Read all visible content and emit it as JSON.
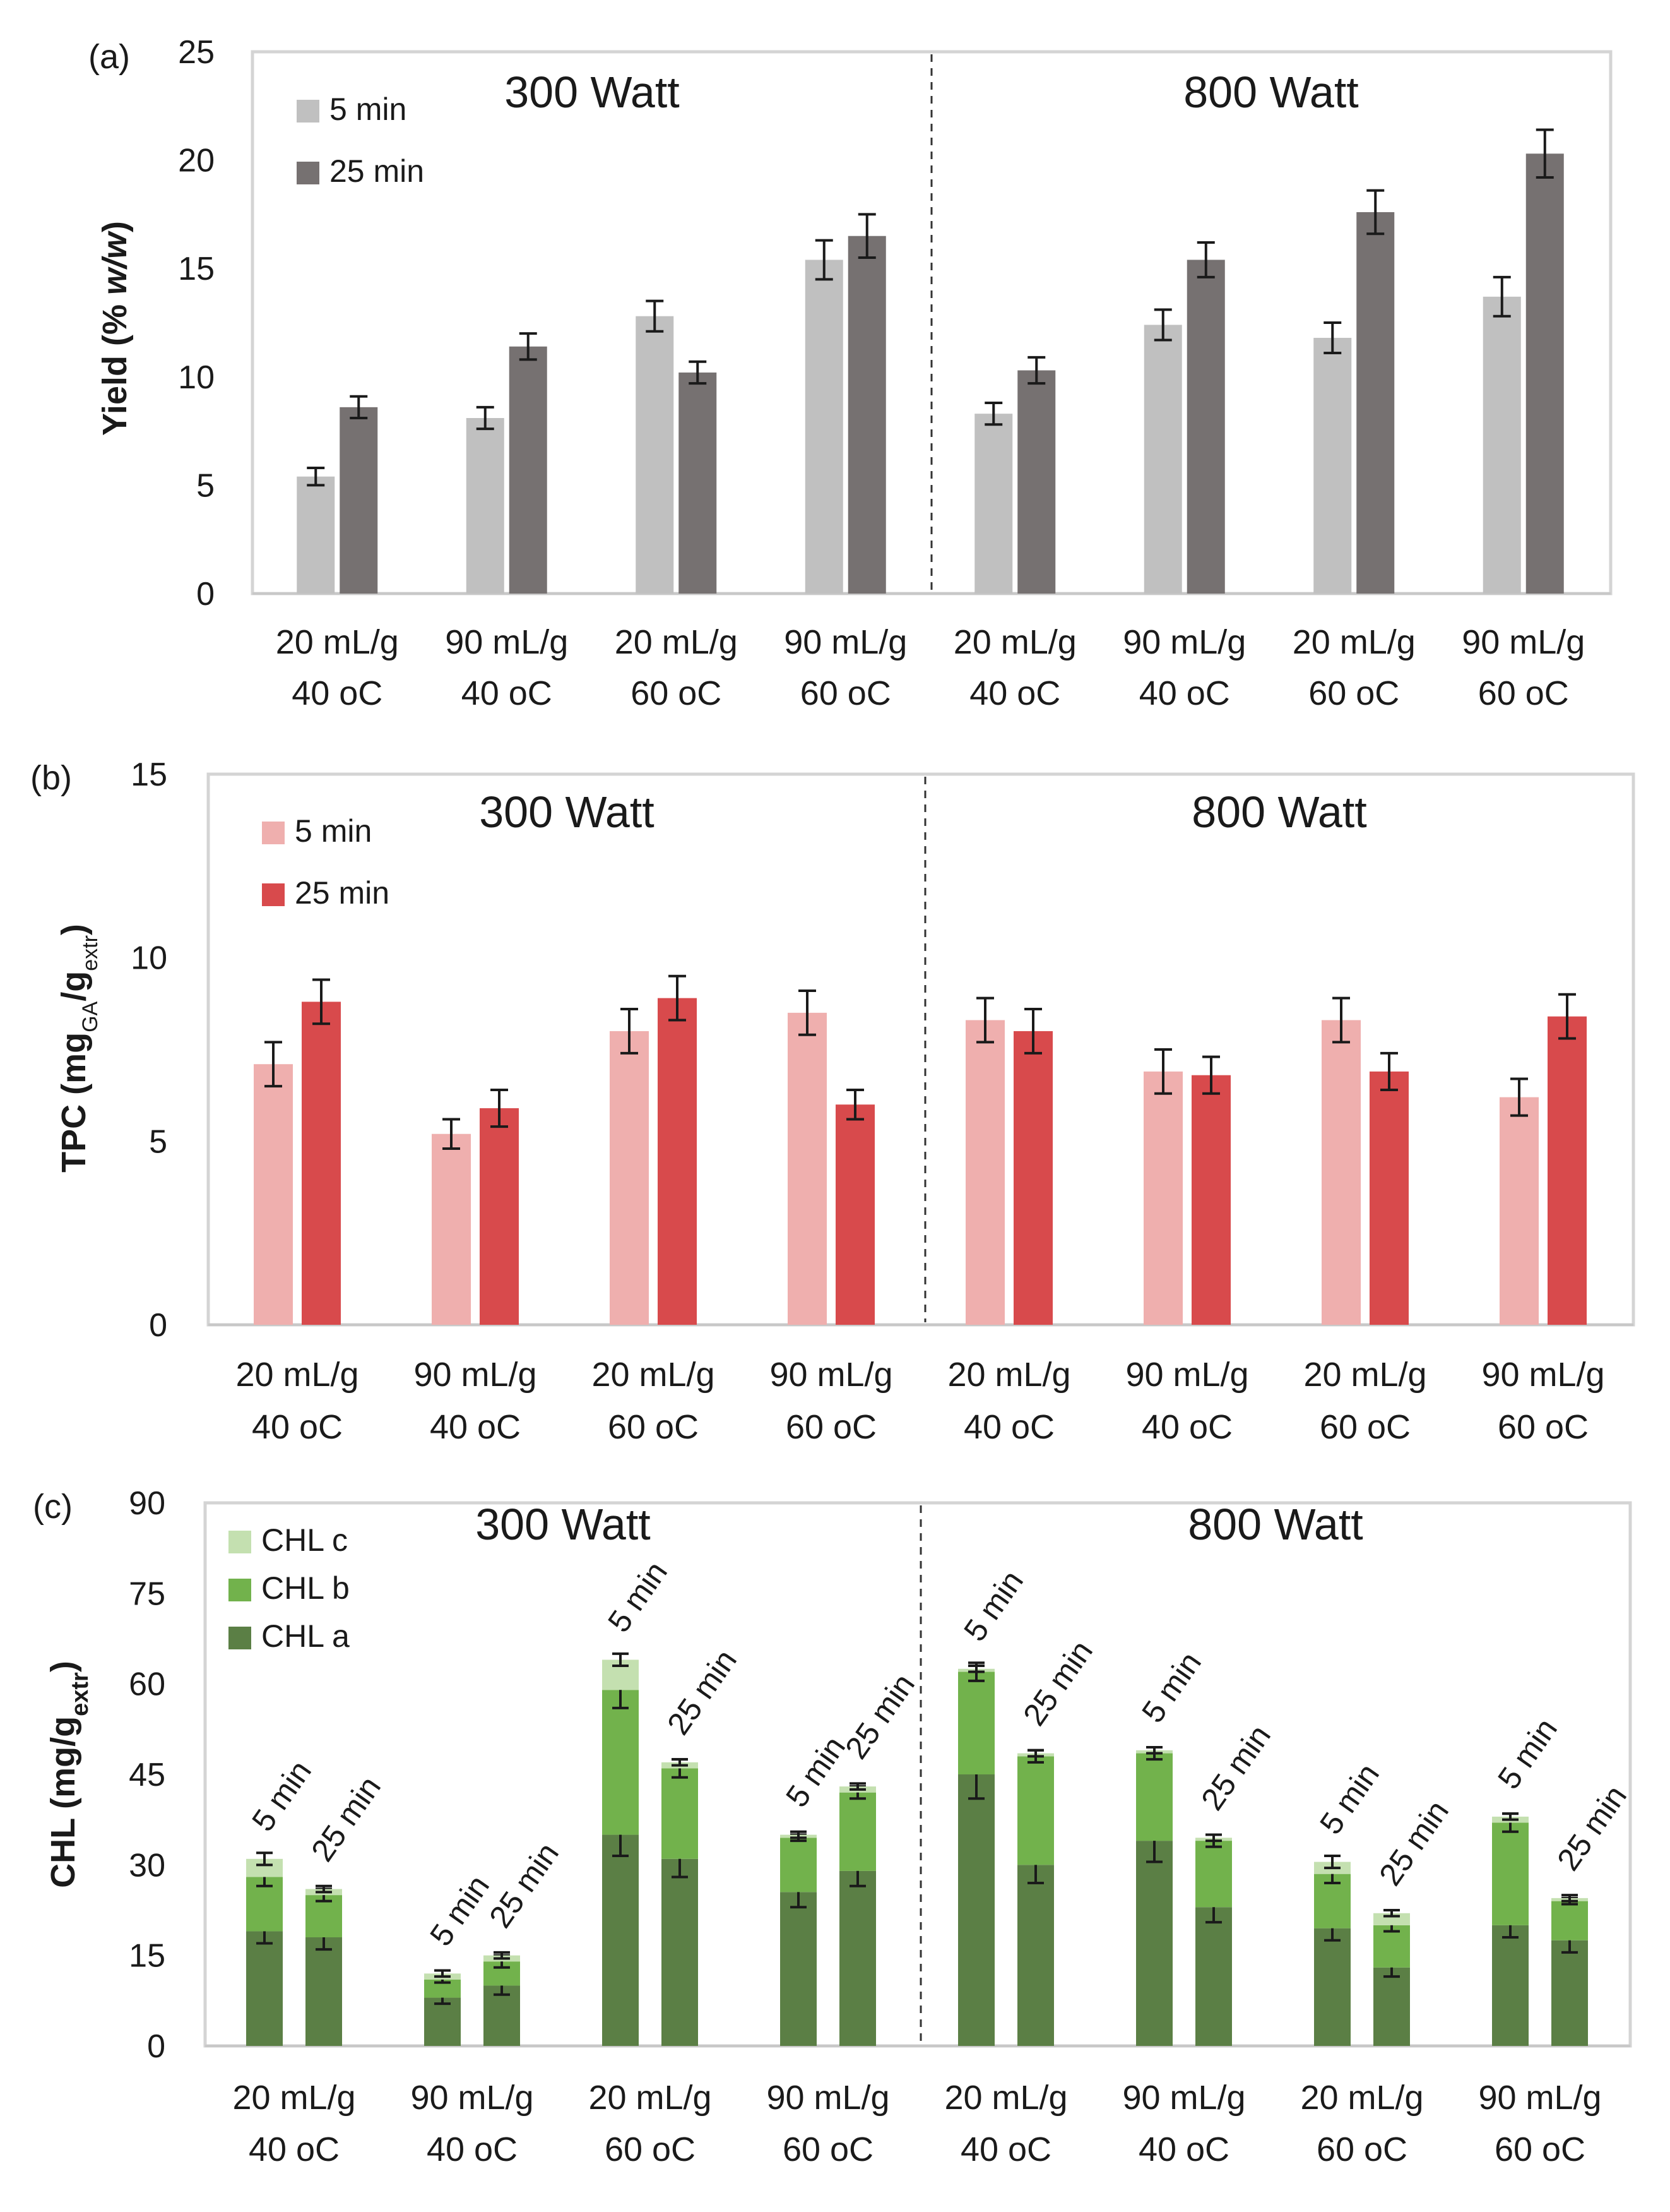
{
  "chart_data": [
    {
      "type": "bar",
      "panel": "(a)",
      "ylabel": "Yield (% w/w)",
      "ylim": [
        0,
        25
      ],
      "yticks": [
        0,
        5,
        10,
        15,
        20,
        25
      ],
      "categories": [
        [
          "20 mL/g",
          "40 oC"
        ],
        [
          "90 mL/g",
          "40 oC"
        ],
        [
          "20 mL/g",
          "60 oC"
        ],
        [
          "90 mL/g",
          "60 oC"
        ],
        [
          "20 mL/g",
          "40 oC"
        ],
        [
          "90 mL/g",
          "40 oC"
        ],
        [
          "20 mL/g",
          "60 oC"
        ],
        [
          "90 mL/g",
          "60 oC"
        ]
      ],
      "groups": [
        "300 Watt",
        "800 Watt"
      ],
      "series": [
        {
          "name": "5 min",
          "color": "#c0c0c0",
          "values": [
            5.4,
            8.1,
            12.8,
            15.4,
            8.3,
            12.4,
            11.8,
            13.7
          ],
          "errors": [
            0.4,
            0.5,
            0.7,
            0.9,
            0.5,
            0.7,
            0.7,
            0.9
          ]
        },
        {
          "name": "25 min",
          "color": "#767171",
          "values": [
            8.6,
            11.4,
            10.2,
            16.5,
            10.3,
            15.4,
            17.6,
            20.3
          ],
          "errors": [
            0.5,
            0.6,
            0.5,
            1.0,
            0.6,
            0.8,
            1.0,
            1.1
          ]
        }
      ]
    },
    {
      "type": "bar",
      "panel": "(b)",
      "ylabel": "TPC (mgGA/gextr)",
      "ylabel_parts": {
        "main": "TPC (mg",
        "sub1": "GA",
        "mid": "/g",
        "sub2": "extr",
        "end": ")"
      },
      "ylim": [
        0,
        15
      ],
      "yticks": [
        0,
        5,
        10,
        15
      ],
      "categories": [
        [
          "20 mL/g",
          "40 oC"
        ],
        [
          "90 mL/g",
          "40 oC"
        ],
        [
          "20 mL/g",
          "60 oC"
        ],
        [
          "90 mL/g",
          "60 oC"
        ],
        [
          "20 mL/g",
          "40 oC"
        ],
        [
          "90 mL/g",
          "40 oC"
        ],
        [
          "20 mL/g",
          "60 oC"
        ],
        [
          "90 mL/g",
          "60 oC"
        ]
      ],
      "groups": [
        "300 Watt",
        "800 Watt"
      ],
      "series": [
        {
          "name": "5 min",
          "color": "#efafae",
          "values": [
            7.1,
            5.2,
            8.0,
            8.5,
            8.3,
            6.9,
            8.3,
            6.2
          ],
          "errors": [
            0.6,
            0.4,
            0.6,
            0.6,
            0.6,
            0.6,
            0.6,
            0.5
          ]
        },
        {
          "name": "25 min",
          "color": "#d84a4c",
          "values": [
            8.8,
            5.9,
            8.9,
            6.0,
            8.0,
            6.8,
            6.9,
            8.4
          ],
          "errors": [
            0.6,
            0.5,
            0.6,
            0.4,
            0.6,
            0.5,
            0.5,
            0.6
          ]
        }
      ]
    },
    {
      "type": "stacked_bar",
      "panel": "(c)",
      "ylabel": "CHL (mg/gextr)",
      "ylabel_parts": {
        "main": "CHL (mg/g",
        "sub": "extr",
        "end": ")"
      },
      "ylim": [
        0,
        90
      ],
      "yticks": [
        0,
        15,
        30,
        45,
        60,
        75,
        90
      ],
      "categories": [
        [
          "20 mL/g",
          "40 oC"
        ],
        [
          "90 mL/g",
          "40 oC"
        ],
        [
          "20 mL/g",
          "60 oC"
        ],
        [
          "90 mL/g",
          "60 oC"
        ],
        [
          "20 mL/g",
          "40 oC"
        ],
        [
          "90 mL/g",
          "40 oC"
        ],
        [
          "20 mL/g",
          "60 oC"
        ],
        [
          "90 mL/g",
          "60 oC"
        ]
      ],
      "groups": [
        "300 Watt",
        "800 Watt"
      ],
      "bar_labels": [
        "5 min",
        "25 min"
      ],
      "components": [
        {
          "name": "CHL a",
          "color": "#5b7f45"
        },
        {
          "name": "CHL b",
          "color": "#72b24c"
        },
        {
          "name": "CHL c",
          "color": "#c4e0b0"
        }
      ],
      "bars": [
        {
          "category": 0,
          "time": "5 min",
          "a": 19,
          "b": 9,
          "c": 3,
          "errors": [
            2,
            1.5,
            1
          ]
        },
        {
          "category": 0,
          "time": "25 min",
          "a": 18,
          "b": 7,
          "c": 1,
          "errors": [
            2,
            1,
            0.5
          ]
        },
        {
          "category": 1,
          "time": "5 min",
          "a": 8,
          "b": 3,
          "c": 1,
          "errors": [
            1,
            0.5,
            0.5
          ]
        },
        {
          "category": 1,
          "time": "25 min",
          "a": 10,
          "b": 4,
          "c": 1,
          "errors": [
            1.5,
            1,
            0.5
          ]
        },
        {
          "category": 2,
          "time": "5 min",
          "a": 35,
          "b": 24,
          "c": 5,
          "errors": [
            3.5,
            3,
            1
          ]
        },
        {
          "category": 2,
          "time": "25 min",
          "a": 31,
          "b": 15,
          "c": 1,
          "errors": [
            3,
            1.5,
            0.5
          ]
        },
        {
          "category": 3,
          "time": "5 min",
          "a": 25.5,
          "b": 9,
          "c": 0.5,
          "errors": [
            2.5,
            0.5,
            0.5
          ]
        },
        {
          "category": 3,
          "time": "25 min",
          "a": 29,
          "b": 13,
          "c": 1,
          "errors": [
            2.5,
            1,
            0.5
          ]
        },
        {
          "category": 4,
          "time": "5 min",
          "a": 45,
          "b": 17,
          "c": 0.5,
          "errors": [
            4,
            1.5,
            0.5
          ]
        },
        {
          "category": 4,
          "time": "25 min",
          "a": 30,
          "b": 18,
          "c": 0.5,
          "errors": [
            3,
            1,
            0.5
          ]
        },
        {
          "category": 5,
          "time": "5 min",
          "a": 34,
          "b": 14.5,
          "c": 0.5,
          "errors": [
            3.5,
            1,
            0.5
          ]
        },
        {
          "category": 5,
          "time": "25 min",
          "a": 23,
          "b": 11,
          "c": 0.5,
          "errors": [
            2.5,
            1,
            0.5
          ]
        },
        {
          "category": 6,
          "time": "5 min",
          "a": 19.5,
          "b": 9,
          "c": 2,
          "errors": [
            2,
            1.5,
            1
          ]
        },
        {
          "category": 6,
          "time": "25 min",
          "a": 13,
          "b": 7,
          "c": 2,
          "errors": [
            1.5,
            1,
            0.5
          ]
        },
        {
          "category": 7,
          "time": "5 min",
          "a": 20,
          "b": 17,
          "c": 1,
          "errors": [
            2,
            1.5,
            0.5
          ]
        },
        {
          "category": 7,
          "time": "25 min",
          "a": 17.5,
          "b": 6.5,
          "c": 0.5,
          "errors": [
            2,
            0.5,
            0.5
          ]
        }
      ]
    }
  ]
}
